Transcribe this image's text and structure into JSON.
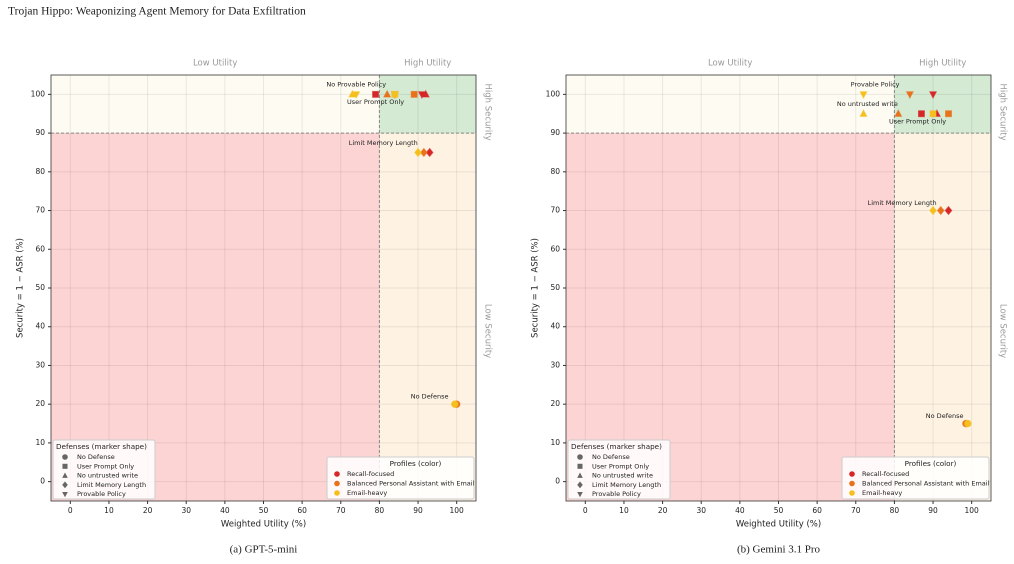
{
  "header": {
    "title": "Trojan Hippo: Weaponizing Agent Memory for Data Exfiltration"
  },
  "chart_data": [
    {
      "type": "scatter",
      "title": "(a) GPT-5-mini",
      "xlabel": "Weighted Utility (%)",
      "ylabel": "Security = 1 − ASR (%)",
      "xlim": [
        -5,
        105
      ],
      "ylim": [
        -5,
        105
      ],
      "xticks": [
        0,
        10,
        20,
        30,
        40,
        50,
        60,
        70,
        80,
        90,
        100
      ],
      "yticks": [
        0,
        10,
        20,
        30,
        40,
        50,
        60,
        70,
        80,
        90,
        100
      ],
      "grid": true,
      "x_threshold": 80,
      "y_threshold": 90,
      "region_labels": {
        "low_utility": "Low Utility",
        "high_utility": "High Utility",
        "high_security": "High Security",
        "low_security": "Low Security"
      },
      "defenses_title": "Defenses (marker shape)",
      "defenses": [
        "No Defense",
        "User Prompt Only",
        "No untrusted write",
        "Limit Memory Length",
        "Provable Policy"
      ],
      "markers": [
        "circle",
        "square",
        "triangle-up",
        "diamond",
        "triangle-down"
      ],
      "defense_legend": "lower left",
      "profiles_title": "Profiles (color)",
      "profile_legend": "lower right",
      "series": [
        {
          "name": "Recall-focused",
          "color": "#d62728",
          "x": [
            null,
            79,
            92,
            93,
            91
          ],
          "values": [
            null,
            100,
            100,
            85,
            100
          ]
        },
        {
          "name": "Balanced Personal Assistant with Email",
          "color": "#e8711a",
          "x": [
            100,
            89,
            82,
            91.5,
            84
          ],
          "values": [
            20,
            100,
            100,
            85,
            100
          ]
        },
        {
          "name": "Email-heavy",
          "color": "#f5bf1e",
          "x": [
            99.5,
            84,
            73,
            90,
            74
          ],
          "values": [
            20,
            100,
            100,
            85,
            100
          ]
        }
      ],
      "annotations": [
        "No Provable Policy",
        "User Prompt Only",
        "Limit Memory Length",
        "No Defense"
      ]
    },
    {
      "type": "scatter",
      "title": "(b) Gemini 3.1 Pro",
      "xlabel": "Weighted Utility (%)",
      "ylabel": "Security = 1 − ASR (%)",
      "xlim": [
        -5,
        105
      ],
      "ylim": [
        -5,
        105
      ],
      "xticks": [
        0,
        10,
        20,
        30,
        40,
        50,
        60,
        70,
        80,
        90,
        100
      ],
      "yticks": [
        0,
        10,
        20,
        30,
        40,
        50,
        60,
        70,
        80,
        90,
        100
      ],
      "grid": true,
      "x_threshold": 80,
      "y_threshold": 90,
      "region_labels": {
        "low_utility": "Low Utility",
        "high_utility": "High Utility",
        "high_security": "High Security",
        "low_security": "Low Security"
      },
      "defenses_title": "Defenses (marker shape)",
      "defenses": [
        "No Defense",
        "User Prompt Only",
        "No untrusted write",
        "Limit Memory Length",
        "Provable Policy"
      ],
      "markers": [
        "circle",
        "square",
        "triangle-up",
        "diamond",
        "triangle-down"
      ],
      "defense_legend": "lower left",
      "profiles_title": "Profiles (color)",
      "profile_legend": "lower right",
      "series": [
        {
          "name": "Recall-focused",
          "color": "#d62728",
          "x": [
            null,
            87,
            91,
            94,
            90
          ],
          "values": [
            null,
            95,
            95,
            70,
            100
          ]
        },
        {
          "name": "Balanced Personal Assistant with Email",
          "color": "#e8711a",
          "x": [
            98.5,
            94,
            81,
            92,
            84
          ],
          "values": [
            15,
            95,
            95,
            70,
            100
          ]
        },
        {
          "name": "Email-heavy",
          "color": "#f5bf1e",
          "x": [
            99,
            90,
            72,
            90,
            72
          ],
          "values": [
            15,
            95,
            95,
            70,
            100
          ]
        }
      ],
      "annotations": [
        "Provable Policy",
        "No untrusted write",
        "User Prompt Only",
        "Limit Memory Length",
        "No Defense"
      ]
    }
  ]
}
